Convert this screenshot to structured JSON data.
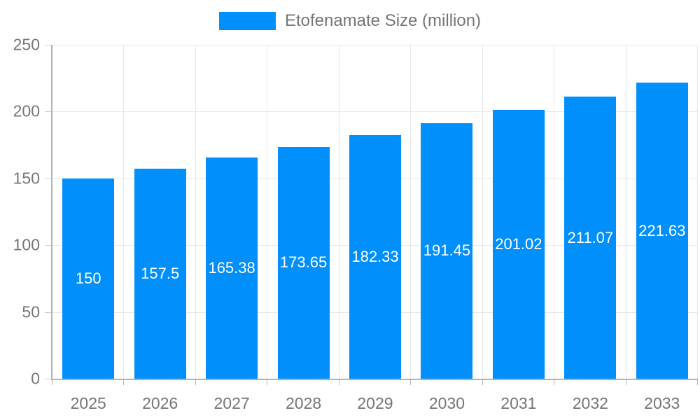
{
  "chart_data": {
    "type": "bar",
    "title": "Etofenamate Size (million)",
    "legend": {
      "label": "Etofenamate Size (million)",
      "position": "top"
    },
    "categories": [
      "2025",
      "2026",
      "2027",
      "2028",
      "2029",
      "2030",
      "2031",
      "2032",
      "2033"
    ],
    "values": [
      150,
      157.5,
      165.38,
      173.65,
      182.33,
      191.45,
      201.02,
      211.07,
      221.63
    ],
    "value_labels": [
      "150",
      "157.5",
      "165.38",
      "173.65",
      "182.33",
      "191.45",
      "201.02",
      "211.07",
      "221.63"
    ],
    "xlabel": "",
    "ylabel": "",
    "ylim": [
      0,
      250
    ],
    "yticks": [
      0,
      50,
      100,
      150,
      200,
      250
    ],
    "grid": true,
    "colors": {
      "bar": "#008FFB",
      "axis_text": "#757575",
      "axis_line": "#b3b3b3",
      "gridline": "#e7e7e7",
      "value_text": "#ffffff",
      "background": "#ffffff"
    }
  }
}
